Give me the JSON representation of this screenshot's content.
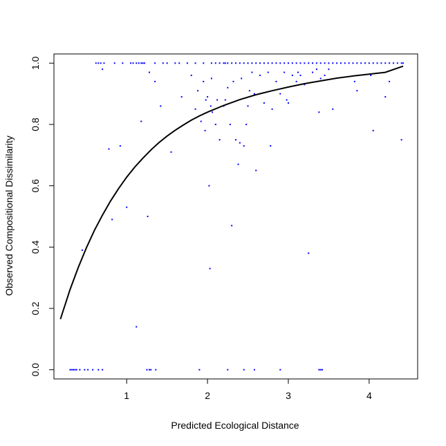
{
  "chart_data": {
    "type": "scatter",
    "title": "",
    "xlabel": "Predicted Ecological Distance",
    "ylabel": "Observed Compositional Dissimilarity",
    "xlim": [
      0.1,
      4.6
    ],
    "ylim": [
      -0.03,
      1.03
    ],
    "xticks": [
      1,
      2,
      3,
      4
    ],
    "xtick_labels": [
      "1",
      "2",
      "3",
      "4"
    ],
    "yticks": [
      0.0,
      0.2,
      0.4,
      0.6,
      0.8,
      1.0
    ],
    "ytick_labels": [
      "0.0",
      "0.2",
      "0.4",
      "0.6",
      "0.8",
      "1.0"
    ],
    "grid": false,
    "legend": "none",
    "colors": {
      "points": "#0000ff",
      "curve": "#000000",
      "axes": "#000000"
    },
    "series": [
      {
        "type": "scatter",
        "x": [
          0.3,
          0.32,
          0.34,
          0.36,
          0.38,
          0.42,
          0.48,
          0.52,
          0.58,
          0.65,
          0.7,
          1.25,
          1.28,
          1.3,
          1.36,
          1.9,
          2.25,
          2.45,
          2.58,
          2.9,
          3.38,
          3.4,
          3.42,
          0.62,
          0.65,
          0.68,
          0.72,
          0.85,
          0.95,
          1.05,
          1.08,
          1.12,
          1.15,
          1.18,
          1.2,
          1.22,
          1.35,
          1.45,
          1.5,
          1.6,
          1.65,
          1.75,
          1.85,
          1.95,
          2.05,
          2.1,
          2.15,
          2.2,
          2.22,
          2.25,
          2.3,
          2.35,
          2.4,
          2.45,
          2.5,
          2.55,
          2.6,
          2.65,
          2.7,
          2.75,
          2.8,
          2.85,
          2.9,
          2.95,
          3.0,
          3.05,
          3.1,
          3.15,
          3.2,
          3.25,
          3.3,
          3.35,
          3.4,
          3.45,
          3.5,
          3.55,
          3.6,
          3.65,
          3.7,
          3.75,
          3.8,
          3.85,
          3.9,
          3.95,
          4.0,
          4.05,
          4.1,
          4.15,
          4.2,
          4.25,
          4.3,
          4.35,
          4.4,
          4.42,
          0.45,
          0.7,
          0.78,
          0.82,
          0.92,
          1.0,
          1.12,
          1.18,
          1.26,
          1.28,
          1.35,
          1.42,
          1.55,
          1.68,
          1.8,
          1.85,
          1.88,
          1.92,
          1.95,
          1.97,
          1.98,
          2.0,
          2.02,
          2.03,
          2.04,
          2.05,
          2.06,
          2.1,
          2.12,
          2.15,
          2.2,
          2.22,
          2.25,
          2.28,
          2.3,
          2.32,
          2.35,
          2.38,
          2.4,
          2.42,
          2.45,
          2.48,
          2.5,
          2.52,
          2.55,
          2.58,
          2.6,
          2.65,
          2.7,
          2.75,
          2.78,
          2.8,
          2.85,
          2.9,
          2.95,
          2.98,
          3.0,
          3.05,
          3.1,
          3.12,
          3.15,
          3.2,
          3.25,
          3.3,
          3.35,
          3.38,
          3.4,
          3.45,
          3.5,
          3.55,
          3.82,
          3.85,
          4.02,
          4.05,
          4.2,
          4.25,
          4.4
        ],
        "y": [
          0.0,
          0.0,
          0.0,
          0.0,
          0.0,
          0.0,
          0.0,
          0.0,
          0.0,
          0.0,
          0.0,
          0.0,
          0.0,
          0.0,
          0.0,
          0.0,
          0.0,
          0.0,
          0.0,
          0.0,
          0.0,
          0.0,
          0.0,
          1.0,
          1.0,
          1.0,
          1.0,
          1.0,
          1.0,
          1.0,
          1.0,
          1.0,
          1.0,
          1.0,
          1.0,
          1.0,
          1.0,
          1.0,
          1.0,
          1.0,
          1.0,
          1.0,
          1.0,
          1.0,
          1.0,
          1.0,
          1.0,
          1.0,
          1.0,
          1.0,
          1.0,
          1.0,
          1.0,
          1.0,
          1.0,
          1.0,
          1.0,
          1.0,
          1.0,
          1.0,
          1.0,
          1.0,
          1.0,
          1.0,
          1.0,
          1.0,
          1.0,
          1.0,
          1.0,
          1.0,
          1.0,
          1.0,
          1.0,
          1.0,
          1.0,
          1.0,
          1.0,
          1.0,
          1.0,
          1.0,
          1.0,
          1.0,
          1.0,
          1.0,
          1.0,
          1.0,
          1.0,
          1.0,
          1.0,
          1.0,
          1.0,
          1.0,
          1.0,
          1.0,
          0.39,
          0.98,
          0.72,
          0.49,
          0.73,
          0.53,
          0.14,
          0.81,
          0.5,
          0.97,
          0.94,
          0.86,
          0.71,
          0.89,
          0.96,
          0.85,
          0.91,
          0.81,
          0.94,
          0.78,
          0.88,
          0.89,
          0.6,
          0.33,
          0.86,
          0.95,
          0.84,
          0.8,
          0.88,
          0.75,
          0.86,
          0.88,
          0.92,
          0.8,
          0.47,
          0.94,
          0.75,
          0.67,
          0.74,
          0.95,
          0.73,
          0.8,
          0.86,
          0.91,
          0.97,
          0.9,
          0.65,
          0.96,
          0.87,
          0.97,
          0.73,
          0.85,
          0.94,
          0.9,
          0.97,
          0.88,
          0.87,
          0.96,
          0.94,
          0.97,
          0.96,
          0.93,
          0.38,
          0.97,
          0.98,
          0.84,
          0.95,
          0.96,
          0.98,
          0.85,
          0.94,
          0.91,
          0.96,
          0.78,
          0.89,
          0.94,
          0.75
        ]
      },
      {
        "type": "line",
        "x": [
          0.18,
          0.3,
          0.4,
          0.5,
          0.6,
          0.7,
          0.8,
          0.9,
          1.0,
          1.1,
          1.2,
          1.3,
          1.4,
          1.5,
          1.6,
          1.7,
          1.8,
          1.9,
          2.0,
          2.2,
          2.4,
          2.6,
          2.8,
          3.0,
          3.2,
          3.4,
          3.6,
          3.8,
          4.0,
          4.2,
          4.42
        ],
        "y": [
          0.165,
          0.262,
          0.333,
          0.397,
          0.454,
          0.504,
          0.55,
          0.591,
          0.628,
          0.661,
          0.69,
          0.717,
          0.741,
          0.762,
          0.781,
          0.798,
          0.814,
          0.828,
          0.84,
          0.862,
          0.881,
          0.897,
          0.91,
          0.922,
          0.933,
          0.942,
          0.951,
          0.958,
          0.964,
          0.97,
          0.99
        ]
      }
    ]
  }
}
